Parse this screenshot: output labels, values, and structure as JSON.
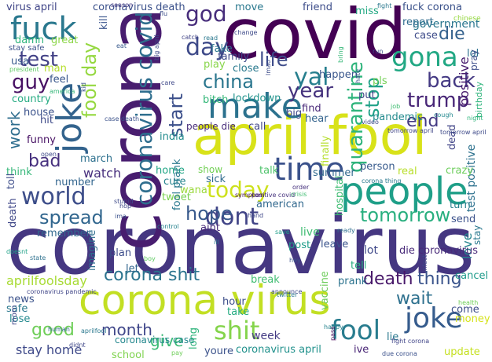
{
  "cloud": {
    "background": "#ffffff",
    "colormap": "viridis",
    "words": [
      {
        "text": "coronavirus",
        "color": "#453781"
      },
      {
        "text": "corona",
        "color": "#481d6f"
      },
      {
        "text": "covid",
        "color": "#440154"
      },
      {
        "text": "april fool",
        "color": "#d8e219"
      },
      {
        "text": "corona virus",
        "color": "#c2df23"
      },
      {
        "text": "people",
        "color": "#1f9f88"
      },
      {
        "text": "make",
        "color": "#2c728e"
      },
      {
        "text": "time",
        "color": "#3b528b"
      },
      {
        "text": "joke",
        "color": "#33638d"
      },
      {
        "text": "fuck",
        "color": "#2a788e"
      },
      {
        "text": "joke",
        "color": "#365c8d"
      },
      {
        "text": "fool",
        "color": "#287c8e"
      },
      {
        "text": "shit",
        "color": "#84d44b"
      },
      {
        "text": "gona",
        "color": "#22a884"
      },
      {
        "text": "day",
        "color": "#3e4a89"
      },
      {
        "text": "coronavirus covid",
        "color": "#2e6e8e"
      },
      {
        "text": "today",
        "color": "#cde11d"
      },
      {
        "text": "dont",
        "color": "#414487"
      },
      {
        "text": "world",
        "color": "#3d4e8a"
      },
      {
        "text": "quarantine",
        "color": "#2fb47c"
      },
      {
        "text": "yal",
        "color": "#277f8e"
      },
      {
        "text": "test",
        "color": "#424186"
      },
      {
        "text": "god",
        "color": "#472d7b"
      },
      {
        "text": "fool day",
        "color": "#95d840"
      },
      {
        "text": "life",
        "color": "#3e4c8a"
      },
      {
        "text": "year",
        "color": "#46337e"
      },
      {
        "text": "stop",
        "color": "#1fa187"
      },
      {
        "text": "back",
        "color": "#443983"
      },
      {
        "text": "trump",
        "color": "#482677"
      },
      {
        "text": "china",
        "color": "#2a768e"
      },
      {
        "text": "start",
        "color": "#3c508b"
      },
      {
        "text": "guy",
        "color": "#471063"
      },
      {
        "text": "end",
        "color": "#443a83"
      },
      {
        "text": "die",
        "color": "#34618d"
      },
      {
        "text": "spread",
        "color": "#31668e"
      },
      {
        "text": "hope",
        "color": "#38598c"
      },
      {
        "text": "tomorrow",
        "color": "#29af7f"
      },
      {
        "text": "work",
        "color": "#2e6d8e"
      },
      {
        "text": "bad",
        "color": "#46307e"
      },
      {
        "text": "corona shit",
        "color": "#2b748e"
      },
      {
        "text": "death",
        "color": "#48186a"
      },
      {
        "text": "thing",
        "color": "#3a548c"
      },
      {
        "text": "wait",
        "color": "#2d708e"
      },
      {
        "text": "good",
        "color": "#6ece58"
      },
      {
        "text": "month",
        "color": "#40478a"
      },
      {
        "text": "give",
        "color": "#3aba76"
      },
      {
        "text": "positive",
        "color": "#481c6e"
      },
      {
        "text": "test positive",
        "color": "#2d718e"
      },
      {
        "text": "government",
        "color": "#2a778e"
      },
      {
        "text": "watch",
        "color": "#472f7d"
      },
      {
        "text": "stay home",
        "color": "#3e4989"
      },
      {
        "text": "live",
        "color": "#40bd72"
      },
      {
        "text": "love",
        "color": "#25848e"
      },
      {
        "text": "aprilfoolsday",
        "color": "#a8db34"
      },
      {
        "text": "coronavirus case",
        "color": "#24878e"
      },
      {
        "text": "die coronavirus",
        "color": "#482979"
      },
      {
        "text": "week",
        "color": "#443b84"
      },
      {
        "text": "youre",
        "color": "#3b528b"
      },
      {
        "text": "coronavirus april",
        "color": "#21918c"
      },
      {
        "text": "lot",
        "color": "#3f4889"
      },
      {
        "text": "fake",
        "color": "#2b758e"
      },
      {
        "text": "tweet",
        "color": "#7ad151"
      },
      {
        "text": "cure",
        "color": "#25848e"
      },
      {
        "text": "pandemic",
        "color": "#238a8d"
      },
      {
        "text": "bitch",
        "color": "#35b779"
      },
      {
        "text": "lockdown",
        "color": "#20928c"
      },
      {
        "text": "family",
        "color": "#3e4a89"
      },
      {
        "text": "close",
        "color": "#29798e"
      },
      {
        "text": "man",
        "color": "#b5de2b"
      },
      {
        "text": "feel",
        "color": "#39568c"
      },
      {
        "text": "country",
        "color": "#25ab82"
      },
      {
        "text": "house",
        "color": "#3b528b"
      },
      {
        "text": "funny",
        "color": "#471164"
      },
      {
        "text": "india",
        "color": "#228c8d"
      },
      {
        "text": "find",
        "color": "#4a2a7a"
      },
      {
        "text": "call",
        "color": "#404688"
      },
      {
        "text": "big",
        "color": "#3f4788"
      },
      {
        "text": "hear",
        "color": "#33638d"
      },
      {
        "text": "people die",
        "color": "#472c7a"
      },
      {
        "text": "home",
        "color": "#21a585"
      },
      {
        "text": "show",
        "color": "#73d056"
      },
      {
        "text": "talk",
        "color": "#4ec36b"
      },
      {
        "text": "sick",
        "color": "#2f6b8e"
      },
      {
        "text": "wana",
        "color": "#9bd93c"
      },
      {
        "text": "american",
        "color": "#31688e"
      },
      {
        "text": "summer",
        "color": "#30698e"
      },
      {
        "text": "person",
        "color": "#375a8c"
      },
      {
        "text": "crazy",
        "color": "#6ccd5a"
      },
      {
        "text": "real",
        "color": "#b8de29"
      },
      {
        "text": "turn",
        "color": "#27808e"
      },
      {
        "text": "send",
        "color": "#3b518b"
      },
      {
        "text": "post",
        "color": "#1e9c89"
      },
      {
        "text": "leave",
        "color": "#3a538b"
      },
      {
        "text": "prank",
        "color": "#2c738e"
      },
      {
        "text": "tell",
        "color": "#28ae80"
      },
      {
        "text": "break",
        "color": "#40bd72"
      },
      {
        "text": "cancel",
        "color": "#1e9b8a"
      },
      {
        "text": "plan",
        "color": "#3d4d8a"
      },
      {
        "text": "let",
        "color": "#32658e"
      },
      {
        "text": "hour",
        "color": "#3d4e8a"
      },
      {
        "text": "take",
        "color": "#25ac82"
      },
      {
        "text": "aint",
        "color": "#472a7a"
      },
      {
        "text": "news",
        "color": "#3b528b"
      },
      {
        "text": "safe",
        "color": "#2a788e"
      },
      {
        "text": "lose",
        "color": "#23898e"
      },
      {
        "text": "come",
        "color": "#3d4e8a"
      },
      {
        "text": "money",
        "color": "#d5e21a"
      },
      {
        "text": "school",
        "color": "#7fd34e"
      },
      {
        "text": "update",
        "color": "#c5e021"
      },
      {
        "text": "ive",
        "color": "#482475"
      },
      {
        "text": "long",
        "color": "#2fb47c"
      },
      {
        "text": "lie",
        "color": "#2a788e"
      },
      {
        "text": "report",
        "color": "#2f6c8e"
      },
      {
        "text": "case",
        "color": "#3e4c8a"
      },
      {
        "text": "miss",
        "color": "#23a983"
      },
      {
        "text": "lol",
        "color": "#2d718e"
      },
      {
        "text": "friend",
        "color": "#3d4d8a"
      },
      {
        "text": "move",
        "color": "#2a788e"
      },
      {
        "text": "coronavirus death",
        "color": "#3b518b"
      },
      {
        "text": "virus april",
        "color": "#404588"
      },
      {
        "text": "kill",
        "color": "#3a548c"
      },
      {
        "text": "damn",
        "color": "#2fb47c"
      },
      {
        "text": "great",
        "color": "#8bd646"
      },
      {
        "text": "usa",
        "color": "#38598c"
      },
      {
        "text": "play",
        "color": "#87d549"
      },
      {
        "text": "happen",
        "color": "#39568c"
      },
      {
        "text": "put",
        "color": "#404688"
      },
      {
        "text": "hit",
        "color": "#3e4a89"
      },
      {
        "text": "march",
        "color": "#2d708e"
      },
      {
        "text": "think",
        "color": "#35b779"
      },
      {
        "text": "number",
        "color": "#32658e"
      },
      {
        "text": "toll",
        "color": "#3d4d8a"
      },
      {
        "text": "death",
        "color": "#3f4788"
      },
      {
        "text": "remember",
        "color": "#31688e"
      },
      {
        "text": "fool prank",
        "color": "#29798e"
      },
      {
        "text": "imagine",
        "color": "#2e6e8e"
      },
      {
        "text": "vaccine",
        "color": "#6ccd5a"
      },
      {
        "text": "hospital",
        "color": "#3fbc73"
      },
      {
        "text": "finally",
        "color": "#b5de2b"
      },
      {
        "text": "dead",
        "color": "#414487"
      },
      {
        "text": "pls",
        "color": "#73d056"
      },
      {
        "text": "fuck corona",
        "color": "#3b528b"
      },
      {
        "text": "chinese",
        "color": "#95d840"
      },
      {
        "text": "pray",
        "color": "#3d4d8a"
      },
      {
        "text": "birthday",
        "color": "#2fb47c"
      },
      {
        "text": "stay",
        "color": "#2a788e"
      },
      {
        "text": "mom",
        "color": "#3f4889"
      },
      {
        "text": "stay safe",
        "color": "#3b528b"
      },
      {
        "text": "president",
        "color": "#5ec962"
      },
      {
        "text": "season",
        "color": "#443983"
      },
      {
        "text": "fight corona",
        "color": "#404588"
      },
      {
        "text": "health",
        "color": "#6ece58"
      },
      {
        "text": "symptom",
        "color": "#471063"
      },
      {
        "text": "positive covid",
        "color": "#46337e"
      },
      {
        "text": "stupid",
        "color": "#3e4a89"
      },
      {
        "text": "hand",
        "color": "#3f4788"
      },
      {
        "text": "order",
        "color": "#46327e"
      },
      {
        "text": "crisis",
        "color": "#40bd72"
      },
      {
        "text": "twitter",
        "color": "#2a788e"
      },
      {
        "text": "happy",
        "color": "#26828e"
      },
      {
        "text": "human",
        "color": "#31688e"
      },
      {
        "text": "aprilfool",
        "color": "#2a788e"
      },
      {
        "text": "didnt",
        "color": "#3f4788"
      },
      {
        "text": "pay",
        "color": "#6ece58"
      },
      {
        "text": "due corona",
        "color": "#3b518b"
      },
      {
        "text": "doesnt",
        "color": "#1fa187"
      },
      {
        "text": "boy",
        "color": "#5ec962"
      },
      {
        "text": "hey",
        "color": "#3b528b"
      },
      {
        "text": "save",
        "color": "#1f9e89"
      },
      {
        "text": "pass",
        "color": "#440154"
      },
      {
        "text": "announce",
        "color": "#3e4a89"
      },
      {
        "text": "case death",
        "color": "#3b528b"
      },
      {
        "text": "eat",
        "color": "#38598c"
      },
      {
        "text": "catch",
        "color": "#414487"
      },
      {
        "text": "read",
        "color": "#2a788e"
      },
      {
        "text": "change",
        "color": "#3e4a89"
      },
      {
        "text": "run",
        "color": "#3d4e8a"
      },
      {
        "text": "flu",
        "color": "#3d4d8a"
      },
      {
        "text": "care",
        "color": "#3f4889"
      },
      {
        "text": "lmao",
        "color": "#3e4c8a"
      },
      {
        "text": "ill",
        "color": "#2a788e"
      },
      {
        "text": "state",
        "color": "#2d708e"
      },
      {
        "text": "bring",
        "color": "#37b878"
      },
      {
        "text": "job",
        "color": "#40bd72"
      },
      {
        "text": "night",
        "color": "#2fb47c"
      },
      {
        "text": "tomorrow april",
        "color": "#404688"
      },
      {
        "text": "cough",
        "color": "#23888e"
      },
      {
        "text": "hate",
        "color": "#3b528b"
      },
      {
        "text": "video",
        "color": "#3e4a89"
      },
      {
        "text": "fight",
        "color": "#2a788e"
      },
      {
        "text": "ready",
        "color": "#2e6e8e"
      },
      {
        "text": "infect",
        "color": "#3f4788"
      },
      {
        "text": "ima",
        "color": "#3b518b"
      },
      {
        "text": "corona thing",
        "color": "#2a788e"
      },
      {
        "text": "open",
        "color": "#3e4a89"
      },
      {
        "text": "kid",
        "color": "#3b528b"
      },
      {
        "text": "big april",
        "color": "#3e4a89"
      },
      {
        "text": "america",
        "color": "#35b779"
      },
      {
        "text": "hop",
        "color": "#3f4788"
      },
      {
        "text": "control",
        "color": "#26828e"
      },
      {
        "text": "coronavirus pandemic",
        "color": "#404688"
      },
      {
        "text": "tomorrow april",
        "color": "#3e4a89"
      }
    ]
  }
}
